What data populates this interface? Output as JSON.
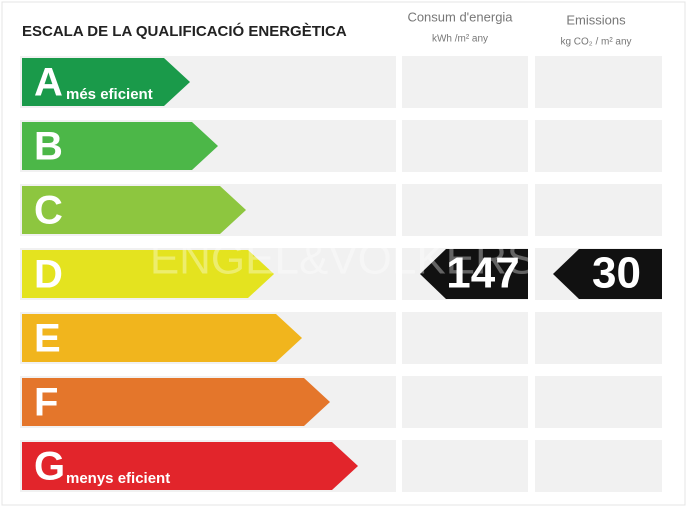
{
  "title": "ESCALA DE LA QUALIFICACIÓ ENERGÈTICA",
  "columns": [
    {
      "label": "Consum d'energia",
      "unit": "kWh /m² any"
    },
    {
      "label": "Emissions",
      "unit": "kg CO₂ / m² any"
    }
  ],
  "watermark": "ENGEL&VÖLKERS",
  "rows": [
    {
      "letter": "A",
      "note": "més eficient",
      "color": "#1a9a4a"
    },
    {
      "letter": "B",
      "color": "#4cb748"
    },
    {
      "letter": "C",
      "color": "#8dc63f"
    },
    {
      "letter": "D",
      "color": "#e4e31f",
      "consumption": "147",
      "emissions": "30"
    },
    {
      "letter": "E",
      "color": "#f1b51d"
    },
    {
      "letter": "F",
      "color": "#e4762b"
    },
    {
      "letter": "G",
      "note": "menys eficient",
      "color": "#e2252b"
    }
  ]
}
